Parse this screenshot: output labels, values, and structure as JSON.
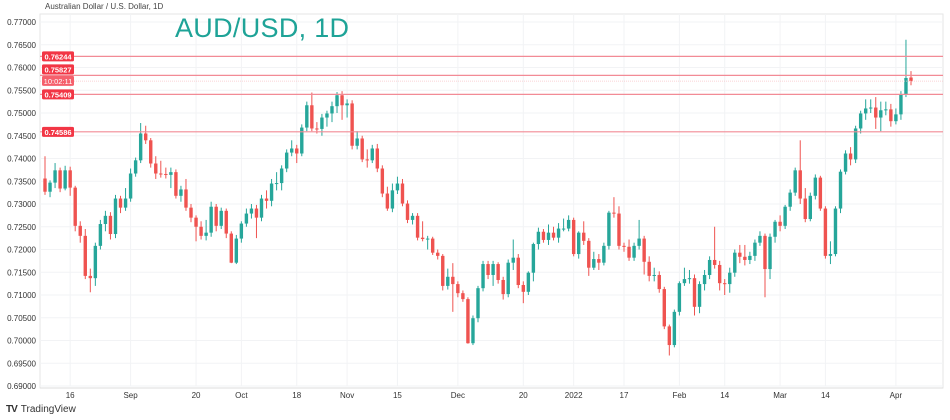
{
  "header": {
    "symbol_description": "Australian Dollar / U.S. Dollar, 1D",
    "title": "AUD/USD, 1D"
  },
  "branding": {
    "logo_text": "TradingView",
    "logo_mark": "TV"
  },
  "colors": {
    "up": "#26a69a",
    "down": "#ef5350",
    "level_line": "#f28b96",
    "label_bg": "#f23645",
    "title": "#1ea397",
    "grid": "#f2f3f5"
  },
  "chart_data": {
    "type": "candlestick",
    "title": "AUD/USD, 1D",
    "ylim": [
      0.69,
      0.77
    ],
    "y_ticks": [
      "0.77000",
      "0.76500",
      "0.76000",
      "0.75500",
      "0.75000",
      "0.74500",
      "0.74000",
      "0.73500",
      "0.73000",
      "0.72500",
      "0.72000",
      "0.71500",
      "0.71000",
      "0.70500",
      "0.70000",
      "0.69500",
      "0.69000"
    ],
    "x_ticks": [
      {
        "label": "16",
        "date": "2021-08-16"
      },
      {
        "label": "Sep",
        "date": "2021-09-01"
      },
      {
        "label": "20",
        "date": "2021-09-20"
      },
      {
        "label": "Oct",
        "date": "2021-10-01"
      },
      {
        "label": "18",
        "date": "2021-10-18"
      },
      {
        "label": "Nov",
        "date": "2021-11-01"
      },
      {
        "label": "15",
        "date": "2021-11-15"
      },
      {
        "label": "Dec",
        "date": "2021-12-01"
      },
      {
        "label": "20",
        "date": "2021-12-20"
      },
      {
        "label": "2022",
        "date": "2022-01-03"
      },
      {
        "label": "17",
        "date": "2022-01-17"
      },
      {
        "label": "Feb",
        "date": "2022-02-01"
      },
      {
        "label": "14",
        "date": "2022-02-14"
      },
      {
        "label": "Mar",
        "date": "2022-03-01"
      },
      {
        "label": "14",
        "date": "2022-03-14"
      },
      {
        "label": "Apr",
        "date": "2022-04-01"
      }
    ],
    "grid": true,
    "levels": [
      {
        "price": 0.76244,
        "label": "0.76244"
      },
      {
        "price": 0.75827,
        "label": "0.75827"
      },
      {
        "price": 0.75409,
        "label": "0.75409"
      },
      {
        "price": 0.74586,
        "label": "0.74586"
      }
    ],
    "countdown": "10:02:11",
    "candle_fields": [
      "date",
      "open",
      "high",
      "low",
      "close"
    ],
    "candles": [
      [
        "2021-08-09",
        0.7356,
        0.7405,
        0.732,
        0.7327
      ],
      [
        "2021-08-10",
        0.7327,
        0.7352,
        0.7315,
        0.7347
      ],
      [
        "2021-08-11",
        0.7347,
        0.739,
        0.7335,
        0.7374
      ],
      [
        "2021-08-12",
        0.7374,
        0.738,
        0.7326,
        0.7334
      ],
      [
        "2021-08-13",
        0.7334,
        0.7384,
        0.733,
        0.7374
      ],
      [
        "2021-08-16",
        0.7374,
        0.7382,
        0.7318,
        0.7336
      ],
      [
        "2021-08-17",
        0.7336,
        0.734,
        0.724,
        0.7252
      ],
      [
        "2021-08-18",
        0.7252,
        0.7262,
        0.7215,
        0.723
      ],
      [
        "2021-08-19",
        0.723,
        0.7245,
        0.7135,
        0.7142
      ],
      [
        "2021-08-20",
        0.7142,
        0.7158,
        0.7106,
        0.7137
      ],
      [
        "2021-08-23",
        0.7137,
        0.7215,
        0.712,
        0.7208
      ],
      [
        "2021-08-24",
        0.7208,
        0.7265,
        0.72,
        0.7256
      ],
      [
        "2021-08-25",
        0.7256,
        0.7285,
        0.724,
        0.7274
      ],
      [
        "2021-08-26",
        0.7274,
        0.7282,
        0.7222,
        0.7234
      ],
      [
        "2021-08-27",
        0.7234,
        0.732,
        0.7225,
        0.7312
      ],
      [
        "2021-08-30",
        0.7312,
        0.7318,
        0.728,
        0.7292
      ],
      [
        "2021-08-31",
        0.7292,
        0.7335,
        0.7285,
        0.7312
      ],
      [
        "2021-09-01",
        0.7312,
        0.7378,
        0.7305,
        0.7367
      ],
      [
        "2021-09-02",
        0.7367,
        0.7402,
        0.736,
        0.7396
      ],
      [
        "2021-09-03",
        0.7396,
        0.7478,
        0.739,
        0.7455
      ],
      [
        "2021-09-06",
        0.7455,
        0.7472,
        0.7432,
        0.744
      ],
      [
        "2021-09-07",
        0.744,
        0.7445,
        0.738,
        0.7389
      ],
      [
        "2021-09-08",
        0.7389,
        0.7405,
        0.7355,
        0.7367
      ],
      [
        "2021-09-09",
        0.7367,
        0.7395,
        0.7358,
        0.7366
      ],
      [
        "2021-09-10",
        0.7366,
        0.738,
        0.7356,
        0.7364
      ],
      [
        "2021-09-13",
        0.7364,
        0.738,
        0.7335,
        0.737
      ],
      [
        "2021-09-14",
        0.737,
        0.7376,
        0.7312,
        0.7318
      ],
      [
        "2021-09-15",
        0.7318,
        0.734,
        0.7305,
        0.7332
      ],
      [
        "2021-09-16",
        0.7332,
        0.7355,
        0.7285,
        0.7292
      ],
      [
        "2021-09-17",
        0.7292,
        0.73,
        0.726,
        0.727
      ],
      [
        "2021-09-20",
        0.727,
        0.7275,
        0.7218,
        0.725
      ],
      [
        "2021-09-21",
        0.725,
        0.7262,
        0.7222,
        0.723
      ],
      [
        "2021-09-22",
        0.723,
        0.7265,
        0.722,
        0.7237
      ],
      [
        "2021-09-23",
        0.7237,
        0.7305,
        0.7228,
        0.7294
      ],
      [
        "2021-09-24",
        0.7294,
        0.73,
        0.724,
        0.7252
      ],
      [
        "2021-09-27",
        0.7252,
        0.7292,
        0.7245,
        0.7285
      ],
      [
        "2021-09-28",
        0.7285,
        0.729,
        0.7225,
        0.7235
      ],
      [
        "2021-09-29",
        0.7235,
        0.724,
        0.717,
        0.7171
      ],
      [
        "2021-09-30",
        0.7171,
        0.7232,
        0.7168,
        0.7224
      ],
      [
        "2021-10-01",
        0.7224,
        0.7262,
        0.7215,
        0.7257
      ],
      [
        "2021-10-04",
        0.7257,
        0.729,
        0.725,
        0.7279
      ],
      [
        "2021-10-05",
        0.7279,
        0.73,
        0.7268,
        0.729
      ],
      [
        "2021-10-06",
        0.729,
        0.7298,
        0.7225,
        0.727
      ],
      [
        "2021-10-07",
        0.727,
        0.732,
        0.7262,
        0.7312
      ],
      [
        "2021-10-08",
        0.7312,
        0.733,
        0.729,
        0.7307
      ],
      [
        "2021-10-11",
        0.7307,
        0.7355,
        0.7295,
        0.7345
      ],
      [
        "2021-10-12",
        0.7345,
        0.737,
        0.733,
        0.7346
      ],
      [
        "2021-10-13",
        0.7346,
        0.7385,
        0.733,
        0.7378
      ],
      [
        "2021-10-14",
        0.7378,
        0.742,
        0.737,
        0.7413
      ],
      [
        "2021-10-15",
        0.7413,
        0.744,
        0.7405,
        0.7422
      ],
      [
        "2021-10-18",
        0.7422,
        0.743,
        0.739,
        0.7411
      ],
      [
        "2021-10-19",
        0.7411,
        0.7475,
        0.7405,
        0.7468
      ],
      [
        "2021-10-20",
        0.7468,
        0.7525,
        0.746,
        0.7517
      ],
      [
        "2021-10-21",
        0.7517,
        0.7545,
        0.746,
        0.7466
      ],
      [
        "2021-10-22",
        0.7466,
        0.748,
        0.7455,
        0.7465
      ],
      [
        "2021-10-25",
        0.7465,
        0.7498,
        0.745,
        0.749
      ],
      [
        "2021-10-26",
        0.749,
        0.7505,
        0.747,
        0.7499
      ],
      [
        "2021-10-27",
        0.7499,
        0.7525,
        0.748,
        0.7515
      ],
      [
        "2021-10-28",
        0.7515,
        0.7546,
        0.75,
        0.7539
      ],
      [
        "2021-10-29",
        0.7539,
        0.7548,
        0.7485,
        0.7517
      ],
      [
        "2021-11-01",
        0.7517,
        0.753,
        0.749,
        0.7521
      ],
      [
        "2021-11-02",
        0.7521,
        0.7528,
        0.742,
        0.7428
      ],
      [
        "2021-11-03",
        0.7428,
        0.746,
        0.742,
        0.7444
      ],
      [
        "2021-11-04",
        0.7444,
        0.745,
        0.7392,
        0.7398
      ],
      [
        "2021-11-05",
        0.7398,
        0.742,
        0.738,
        0.7396
      ],
      [
        "2021-11-08",
        0.7396,
        0.743,
        0.739,
        0.7422
      ],
      [
        "2021-11-09",
        0.7422,
        0.7432,
        0.737,
        0.7378
      ],
      [
        "2021-11-10",
        0.7378,
        0.7385,
        0.7315,
        0.7323
      ],
      [
        "2021-11-11",
        0.7323,
        0.7338,
        0.7285,
        0.729
      ],
      [
        "2021-11-12",
        0.729,
        0.7345,
        0.7282,
        0.733
      ],
      [
        "2021-11-15",
        0.733,
        0.736,
        0.7322,
        0.7345
      ],
      [
        "2021-11-16",
        0.7345,
        0.7355,
        0.7295,
        0.7301
      ],
      [
        "2021-11-17",
        0.7301,
        0.7308,
        0.7258,
        0.7265
      ],
      [
        "2021-11-18",
        0.7265,
        0.728,
        0.7255,
        0.7274
      ],
      [
        "2021-11-19",
        0.7274,
        0.728,
        0.722,
        0.7226
      ],
      [
        "2021-11-22",
        0.7226,
        0.7262,
        0.7218,
        0.7223
      ],
      [
        "2021-11-23",
        0.7223,
        0.723,
        0.72,
        0.7224
      ],
      [
        "2021-11-24",
        0.7224,
        0.7228,
        0.7188,
        0.7193
      ],
      [
        "2021-11-25",
        0.7193,
        0.72,
        0.7178,
        0.7186
      ],
      [
        "2021-11-26",
        0.7186,
        0.719,
        0.711,
        0.712
      ],
      [
        "2021-11-29",
        0.712,
        0.7158,
        0.7112,
        0.714
      ],
      [
        "2021-11-30",
        0.714,
        0.717,
        0.7063,
        0.7124
      ],
      [
        "2021-12-01",
        0.7124,
        0.713,
        0.7095,
        0.7104
      ],
      [
        "2021-12-02",
        0.7104,
        0.711,
        0.7085,
        0.7091
      ],
      [
        "2021-12-03",
        0.7091,
        0.7095,
        0.6993,
        0.6994
      ],
      [
        "2021-12-06",
        0.6994,
        0.7055,
        0.699,
        0.7049
      ],
      [
        "2021-12-07",
        0.7049,
        0.712,
        0.704,
        0.7115
      ],
      [
        "2021-12-08",
        0.7115,
        0.7175,
        0.7108,
        0.7168
      ],
      [
        "2021-12-09",
        0.7168,
        0.7175,
        0.7135,
        0.7144
      ],
      [
        "2021-12-10",
        0.7144,
        0.7175,
        0.712,
        0.7168
      ],
      [
        "2021-12-13",
        0.7168,
        0.7172,
        0.7125,
        0.7133
      ],
      [
        "2021-12-14",
        0.7133,
        0.714,
        0.709,
        0.7102
      ],
      [
        "2021-12-15",
        0.7102,
        0.7178,
        0.7095,
        0.7171
      ],
      [
        "2021-12-16",
        0.7171,
        0.7222,
        0.7155,
        0.7182
      ],
      [
        "2021-12-17",
        0.7182,
        0.719,
        0.7115,
        0.7122
      ],
      [
        "2021-12-20",
        0.7122,
        0.713,
        0.7082,
        0.7107
      ],
      [
        "2021-12-21",
        0.7107,
        0.7152,
        0.71,
        0.7149
      ],
      [
        "2021-12-22",
        0.7149,
        0.7215,
        0.713,
        0.7212
      ],
      [
        "2021-12-23",
        0.7212,
        0.7248,
        0.72,
        0.7239
      ],
      [
        "2021-12-24",
        0.7239,
        0.7245,
        0.7215,
        0.7221
      ],
      [
        "2021-12-27",
        0.7221,
        0.7255,
        0.721,
        0.7237
      ],
      [
        "2021-12-28",
        0.7237,
        0.725,
        0.722,
        0.7226
      ],
      [
        "2021-12-29",
        0.7226,
        0.7258,
        0.7215,
        0.7246
      ],
      [
        "2021-12-30",
        0.7246,
        0.7268,
        0.724,
        0.7246
      ],
      [
        "2021-12-31",
        0.7246,
        0.7275,
        0.724,
        0.7265
      ],
      [
        "2022-01-03",
        0.7265,
        0.727,
        0.7185,
        0.719
      ],
      [
        "2022-01-04",
        0.719,
        0.724,
        0.718,
        0.7237
      ],
      [
        "2022-01-05",
        0.7237,
        0.7262,
        0.721,
        0.7219
      ],
      [
        "2022-01-06",
        0.7219,
        0.7225,
        0.7142,
        0.716
      ],
      [
        "2022-01-07",
        0.716,
        0.7195,
        0.7155,
        0.7179
      ],
      [
        "2022-01-10",
        0.7179,
        0.719,
        0.7155,
        0.7171
      ],
      [
        "2022-01-11",
        0.7171,
        0.7215,
        0.7165,
        0.7208
      ],
      [
        "2022-01-12",
        0.7208,
        0.7285,
        0.72,
        0.7281
      ],
      [
        "2022-01-13",
        0.7281,
        0.7315,
        0.727,
        0.7279
      ],
      [
        "2022-01-14",
        0.7279,
        0.7295,
        0.72,
        0.7208
      ],
      [
        "2022-01-17",
        0.7208,
        0.7215,
        0.7195,
        0.7206
      ],
      [
        "2022-01-18",
        0.7206,
        0.7222,
        0.7175,
        0.7182
      ],
      [
        "2022-01-19",
        0.7182,
        0.7215,
        0.7175,
        0.7208
      ],
      [
        "2022-01-20",
        0.7208,
        0.7265,
        0.72,
        0.7224
      ],
      [
        "2022-01-21",
        0.7224,
        0.723,
        0.7145,
        0.7173
      ],
      [
        "2022-01-24",
        0.7173,
        0.7185,
        0.713,
        0.7142
      ],
      [
        "2022-01-25",
        0.7142,
        0.716,
        0.713,
        0.7144
      ],
      [
        "2022-01-26",
        0.7144,
        0.7152,
        0.7105,
        0.7113
      ],
      [
        "2022-01-27",
        0.7113,
        0.7118,
        0.7025,
        0.7031
      ],
      [
        "2022-01-28",
        0.7031,
        0.7035,
        0.6967,
        0.699
      ],
      [
        "2022-01-31",
        0.699,
        0.7068,
        0.6985,
        0.7063
      ],
      [
        "2022-02-01",
        0.7063,
        0.713,
        0.7055,
        0.7126
      ],
      [
        "2022-02-02",
        0.7126,
        0.716,
        0.712,
        0.7135
      ],
      [
        "2022-02-03",
        0.7135,
        0.7155,
        0.7125,
        0.7137
      ],
      [
        "2022-02-04",
        0.7137,
        0.7145,
        0.7055,
        0.7074
      ],
      [
        "2022-02-07",
        0.7074,
        0.713,
        0.706,
        0.7124
      ],
      [
        "2022-02-08",
        0.7124,
        0.7155,
        0.711,
        0.7144
      ],
      [
        "2022-02-09",
        0.7144,
        0.7185,
        0.7135,
        0.7177
      ],
      [
        "2022-02-10",
        0.7177,
        0.725,
        0.7158,
        0.7166
      ],
      [
        "2022-02-11",
        0.7166,
        0.7175,
        0.711,
        0.7126
      ],
      [
        "2022-02-14",
        0.7126,
        0.7135,
        0.71,
        0.7124
      ],
      [
        "2022-02-15",
        0.7124,
        0.716,
        0.7105,
        0.7149
      ],
      [
        "2022-02-16",
        0.7149,
        0.72,
        0.714,
        0.7193
      ],
      [
        "2022-02-17",
        0.7193,
        0.721,
        0.717,
        0.7184
      ],
      [
        "2022-02-18",
        0.7184,
        0.721,
        0.7165,
        0.7177
      ],
      [
        "2022-02-21",
        0.7177,
        0.7195,
        0.7168,
        0.7186
      ],
      [
        "2022-02-22",
        0.7186,
        0.7222,
        0.7175,
        0.7215
      ],
      [
        "2022-02-23",
        0.7215,
        0.724,
        0.7208,
        0.723
      ],
      [
        "2022-02-24",
        0.723,
        0.7235,
        0.7095,
        0.7157
      ],
      [
        "2022-02-25",
        0.7157,
        0.7235,
        0.7135,
        0.7228
      ],
      [
        "2022-02-28",
        0.7228,
        0.7265,
        0.7215,
        0.7261
      ],
      [
        "2022-03-01",
        0.7261,
        0.7275,
        0.724,
        0.7252
      ],
      [
        "2022-03-02",
        0.7252,
        0.7298,
        0.7245,
        0.7294
      ],
      [
        "2022-03-03",
        0.7294,
        0.7332,
        0.7285,
        0.7325
      ],
      [
        "2022-03-04",
        0.7325,
        0.738,
        0.7318,
        0.7374
      ],
      [
        "2022-03-07",
        0.7374,
        0.744,
        0.73,
        0.7312
      ],
      [
        "2022-03-08",
        0.7312,
        0.7335,
        0.726,
        0.7267
      ],
      [
        "2022-03-09",
        0.7267,
        0.7325,
        0.7262,
        0.7318
      ],
      [
        "2022-03-10",
        0.7318,
        0.7365,
        0.731,
        0.7358
      ],
      [
        "2022-03-11",
        0.7358,
        0.7362,
        0.7285,
        0.729
      ],
      [
        "2022-03-14",
        0.729,
        0.7295,
        0.718,
        0.7186
      ],
      [
        "2022-03-15",
        0.7186,
        0.7218,
        0.7168,
        0.719
      ],
      [
        "2022-03-16",
        0.719,
        0.7295,
        0.7185,
        0.729
      ],
      [
        "2022-03-17",
        0.729,
        0.7376,
        0.728,
        0.7371
      ],
      [
        "2022-03-18",
        0.7371,
        0.7418,
        0.7365,
        0.7411
      ],
      [
        "2022-03-21",
        0.7411,
        0.7425,
        0.7385,
        0.7398
      ],
      [
        "2022-03-22",
        0.7398,
        0.7472,
        0.739,
        0.7466
      ],
      [
        "2022-03-23",
        0.7466,
        0.7505,
        0.7455,
        0.7499
      ],
      [
        "2022-03-24",
        0.7499,
        0.753,
        0.7485,
        0.751
      ],
      [
        "2022-03-25",
        0.751,
        0.753,
        0.75,
        0.7512
      ],
      [
        "2022-03-28",
        0.7512,
        0.7535,
        0.7465,
        0.749
      ],
      [
        "2022-03-29",
        0.749,
        0.7525,
        0.746,
        0.7506
      ],
      [
        "2022-03-30",
        0.7506,
        0.7525,
        0.7495,
        0.7508
      ],
      [
        "2022-03-31",
        0.7508,
        0.752,
        0.747,
        0.7482
      ],
      [
        "2022-04-01",
        0.7482,
        0.751,
        0.7475,
        0.7497
      ],
      [
        "2022-04-04",
        0.7497,
        0.7548,
        0.7485,
        0.7541
      ],
      [
        "2022-04-05",
        0.7541,
        0.7661,
        0.7535,
        0.7577
      ],
      [
        "2022-04-06",
        0.7578,
        0.7592,
        0.7561,
        0.757
      ]
    ]
  }
}
